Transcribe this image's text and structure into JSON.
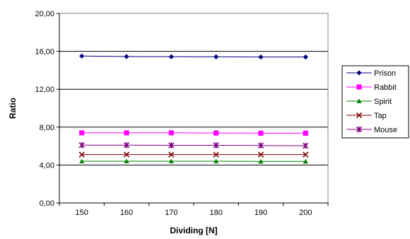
{
  "chart_data": {
    "type": "line",
    "title": "",
    "xlabel": "Dividing [N]",
    "ylabel": "Ratio",
    "x": [
      150,
      160,
      170,
      180,
      190,
      200
    ],
    "x_tick_labels": [
      "150",
      "160",
      "170",
      "180",
      "190",
      "200"
    ],
    "ylim": [
      0,
      20
    ],
    "y_ticks": [
      0,
      4,
      8,
      12,
      16,
      20
    ],
    "y_tick_labels": [
      "0,00",
      "4,00",
      "8,00",
      "12,00",
      "16,00",
      "20,00"
    ],
    "grid": "horizontal",
    "legend_position": "right",
    "series": [
      {
        "name": "Prison",
        "color": "#000080",
        "marker": "diamond",
        "values": [
          15.5,
          15.45,
          15.43,
          15.42,
          15.4,
          15.4
        ]
      },
      {
        "name": "Rabbit",
        "color": "#ff00ff",
        "marker": "square",
        "values": [
          7.4,
          7.4,
          7.4,
          7.38,
          7.36,
          7.36
        ]
      },
      {
        "name": "Spirit",
        "color": "#008000",
        "marker": "triangle",
        "values": [
          4.4,
          4.4,
          4.4,
          4.4,
          4.38,
          4.38
        ]
      },
      {
        "name": "Tap",
        "color": "#800000",
        "marker": "x",
        "values": [
          5.1,
          5.1,
          5.1,
          5.1,
          5.1,
          5.1
        ]
      },
      {
        "name": "Mouse",
        "color": "#800080",
        "marker": "star",
        "values": [
          6.1,
          6.1,
          6.08,
          6.08,
          6.06,
          6.04
        ]
      }
    ]
  }
}
